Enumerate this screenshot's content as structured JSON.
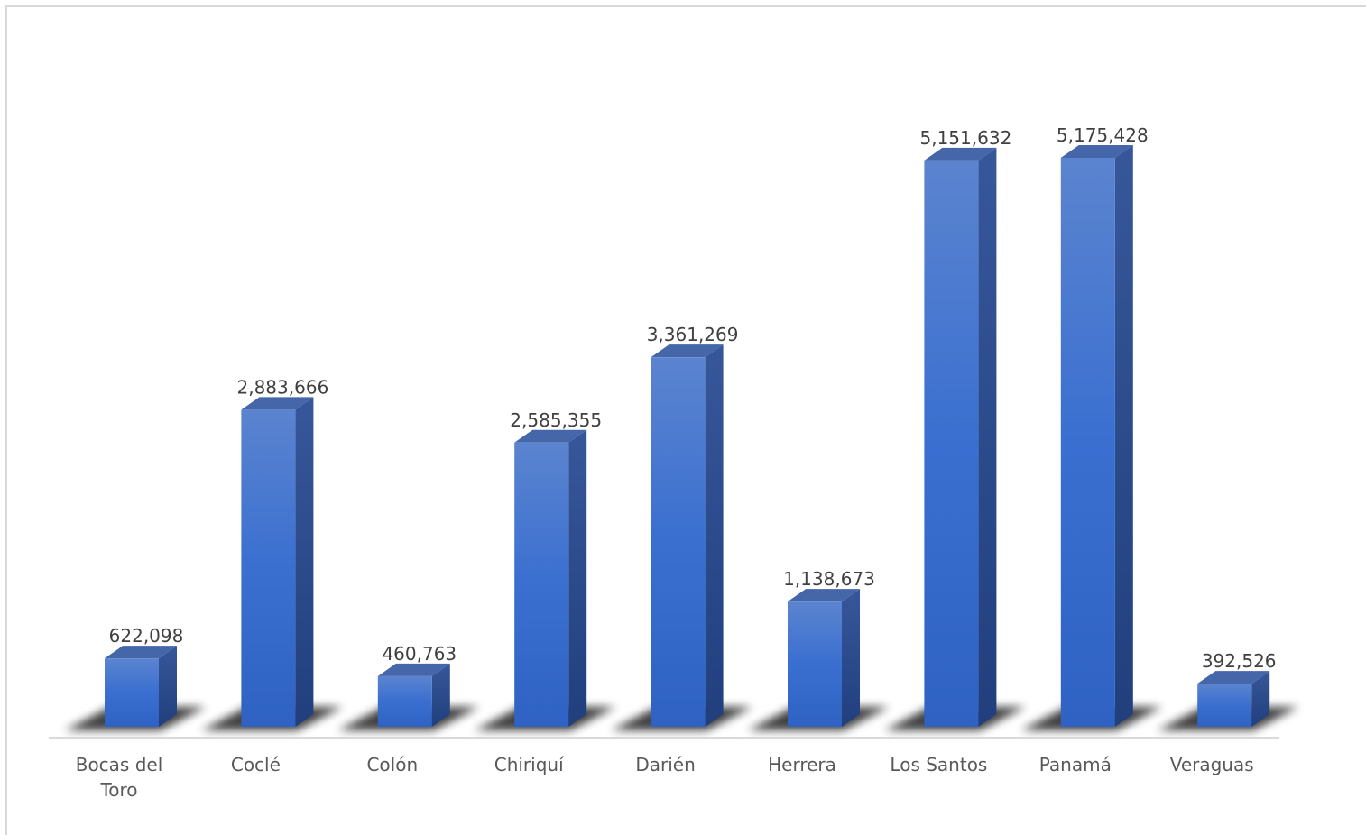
{
  "chart_data": {
    "type": "bar",
    "categories": [
      "Bocas del Toro",
      "Coclé",
      "Colón",
      "Chiriquí",
      "Darién",
      "Herrera",
      "Los Santos",
      "Panamá",
      "Veraguas"
    ],
    "category_lines": [
      [
        "Bocas del",
        "Toro"
      ],
      [
        "Coclé"
      ],
      [
        "Colón"
      ],
      [
        "Chiriquí"
      ],
      [
        "Darién"
      ],
      [
        "Herrera"
      ],
      [
        "Los Santos"
      ],
      [
        "Panamá"
      ],
      [
        "Veraguas"
      ]
    ],
    "values": [
      622098,
      2883666,
      460763,
      2585355,
      3361269,
      1138673,
      5151632,
      5175428,
      392526
    ],
    "value_labels": [
      "622,098",
      "2,883,666",
      "460,763",
      "2,585,355",
      "3,361,269",
      "1,138,673",
      "5,151,632",
      "5,175,428",
      "392,526"
    ],
    "title": "",
    "xlabel": "",
    "ylabel": "",
    "ylim": [
      0,
      5200000
    ],
    "grid": false,
    "legend": "none",
    "style": "3d-column"
  },
  "colors": {
    "bar_front": "#3a6fd0",
    "bar_front_light": "#5b84cf",
    "bar_side": "#2b4f94",
    "bar_top": "#4566a8",
    "axis": "#d9d9d9",
    "shadow": "#000000"
  }
}
